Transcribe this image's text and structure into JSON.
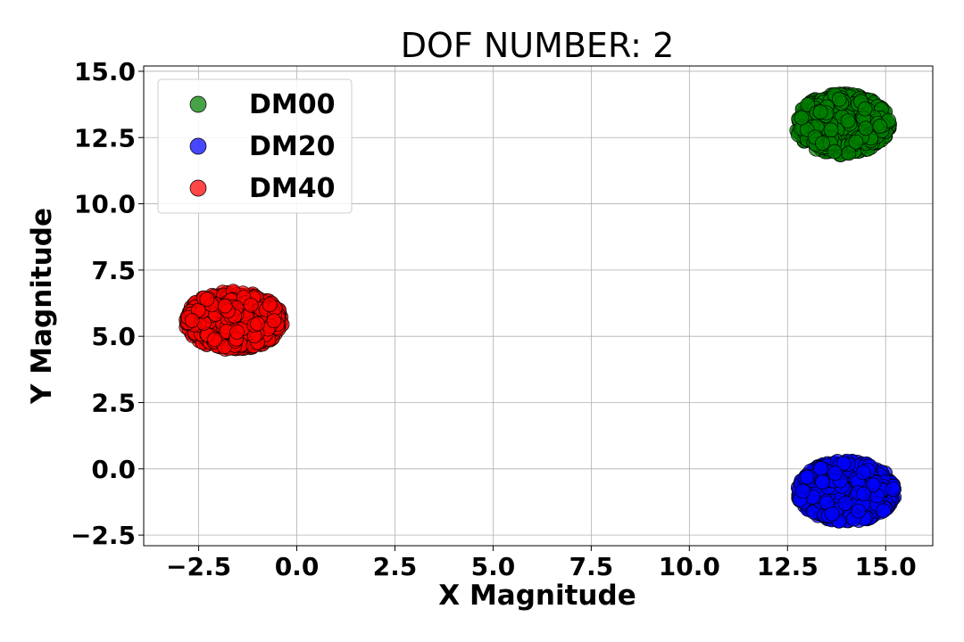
{
  "chart_data": {
    "type": "scatter",
    "title": "DOF NUMBER: 2",
    "xlabel": "X Magnitude",
    "ylabel": "Y Magnitude",
    "xlim": [
      -3.9,
      16.2
    ],
    "ylim": [
      -2.9,
      15.2
    ],
    "xticks": [
      -2.5,
      0.0,
      2.5,
      5.0,
      7.5,
      10.0,
      12.5,
      15.0
    ],
    "yticks": [
      -2.5,
      0.0,
      2.5,
      5.0,
      7.5,
      10.0,
      12.5,
      15.0
    ],
    "xtick_labels": [
      "−2.5",
      "0.0",
      "2.5",
      "5.0",
      "7.5",
      "10.0",
      "12.5",
      "15.0"
    ],
    "ytick_labels": [
      "−2.5",
      "0.0",
      "2.5",
      "5.0",
      "7.5",
      "10.0",
      "12.5",
      "15.0"
    ],
    "grid": true,
    "legend_position": "top-left",
    "series": [
      {
        "name": "DM00",
        "color": "#008000",
        "center": [
          13.9,
          13.0
        ],
        "spread": [
          1.2,
          1.15
        ],
        "count": 700
      },
      {
        "name": "DM20",
        "color": "#0000ff",
        "center": [
          14.0,
          -0.85
        ],
        "spread": [
          1.25,
          1.15
        ],
        "count": 700
      },
      {
        "name": "DM40",
        "color": "#ff0000",
        "center": [
          -1.6,
          5.6
        ],
        "spread": [
          1.25,
          1.1
        ],
        "count": 700
      }
    ]
  }
}
